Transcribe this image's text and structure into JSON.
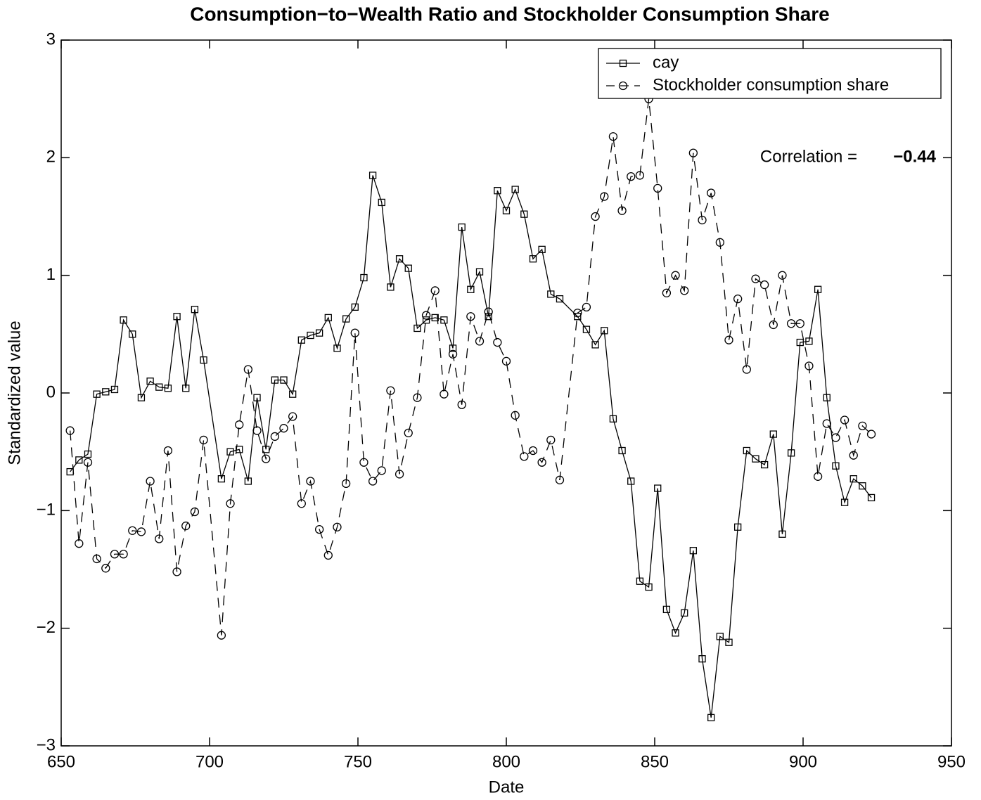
{
  "chart_data": {
    "type": "line",
    "title": "Consumption−to−Wealth Ratio and Stockholder Consumption Share",
    "x_label": "Date",
    "y_label": "Standardized value",
    "x": [
      653,
      656,
      659,
      662,
      665,
      668,
      671,
      674,
      677,
      680,
      683,
      686,
      689,
      692,
      695,
      698,
      704,
      707,
      710,
      713,
      716,
      719,
      722,
      725,
      728,
      731,
      734,
      737,
      740,
      743,
      746,
      749,
      752,
      755,
      758,
      761,
      764,
      767,
      770,
      773,
      776,
      779,
      782,
      785,
      788,
      791,
      794,
      797,
      800,
      803,
      806,
      809,
      812,
      815,
      818,
      824,
      827,
      830,
      833,
      836,
      839,
      842,
      845,
      848,
      851,
      854,
      857,
      860,
      863,
      866,
      869,
      872,
      875,
      878,
      881,
      884,
      887,
      890,
      893,
      896,
      899,
      902,
      905,
      908,
      911,
      914,
      917,
      920,
      923
    ],
    "series": [
      {
        "name": "cay",
        "color": "#000000",
        "line_style": "solid",
        "marker": "square",
        "values": [
          -0.67,
          -0.57,
          -0.52,
          -0.01,
          0.01,
          0.03,
          0.62,
          0.5,
          -0.04,
          0.1,
          0.05,
          0.04,
          0.65,
          0.04,
          0.71,
          0.28,
          -0.73,
          -0.5,
          -0.48,
          -0.75,
          -0.04,
          -0.48,
          0.11,
          0.11,
          -0.01,
          0.45,
          0.49,
          0.51,
          0.64,
          0.38,
          0.63,
          0.73,
          0.98,
          1.85,
          1.62,
          0.9,
          1.14,
          1.06,
          0.55,
          0.62,
          0.64,
          0.62,
          0.38,
          1.41,
          0.88,
          1.03,
          0.65,
          1.72,
          1.55,
          1.73,
          1.52,
          1.14,
          1.22,
          0.84,
          0.8,
          0.65,
          0.54,
          0.41,
          0.53,
          -0.22,
          -0.49,
          -0.75,
          -1.6,
          -1.65,
          -0.81,
          -1.84,
          -2.04,
          -1.87,
          -1.34,
          -2.26,
          -2.76,
          -2.07,
          -2.12,
          -1.14,
          -0.49,
          -0.56,
          -0.61,
          -0.35,
          -1.2,
          -0.51,
          0.43,
          0.44,
          0.88,
          -0.04,
          -0.62,
          -0.93,
          -0.73,
          -0.79,
          -0.89
        ]
      },
      {
        "name": "Stockholder consumption share",
        "color": "#000000",
        "line_style": "dashed",
        "marker": "circle",
        "values": [
          -0.32,
          -1.28,
          -0.59,
          -1.41,
          -1.49,
          -1.37,
          -1.37,
          -1.17,
          -1.18,
          -0.75,
          -1.24,
          -0.49,
          -1.52,
          -1.13,
          -1.01,
          -0.4,
          -2.06,
          -0.94,
          -0.27,
          0.2,
          -0.32,
          -0.56,
          -0.37,
          -0.3,
          -0.2,
          -0.94,
          -0.75,
          -1.16,
          -1.38,
          -1.14,
          -0.77,
          0.51,
          -0.59,
          -0.75,
          -0.66,
          0.02,
          -0.69,
          -0.34,
          -0.04,
          0.66,
          0.87,
          -0.01,
          0.33,
          -0.1,
          0.65,
          0.44,
          0.69,
          0.43,
          0.27,
          -0.19,
          -0.54,
          -0.49,
          -0.59,
          -0.4,
          -0.74,
          0.68,
          0.73,
          1.5,
          1.67,
          2.18,
          1.55,
          1.84,
          1.85,
          2.5,
          1.74,
          0.85,
          1.0,
          0.87,
          2.04,
          1.47,
          1.7,
          1.28,
          0.45,
          0.8,
          0.2,
          0.97,
          0.92,
          0.58,
          1.0,
          0.59,
          0.59,
          0.23,
          -0.71,
          -0.26,
          -0.38,
          -0.23,
          -0.53,
          -0.28,
          -0.35
        ]
      }
    ],
    "xlim": [
      650,
      950
    ],
    "xticks": [
      650,
      700,
      750,
      800,
      850,
      900,
      950
    ],
    "ylim": [
      -3,
      3
    ],
    "yticks": [
      {
        "value": -3,
        "label": "−3"
      },
      {
        "value": -2,
        "label": "−2"
      },
      {
        "value": -1,
        "label": "−1"
      },
      0,
      1,
      2,
      3
    ],
    "legend": "upper right",
    "annotation": {
      "text": "Correlation =",
      "value": -0.44,
      "value_label": "−0.44"
    }
  }
}
